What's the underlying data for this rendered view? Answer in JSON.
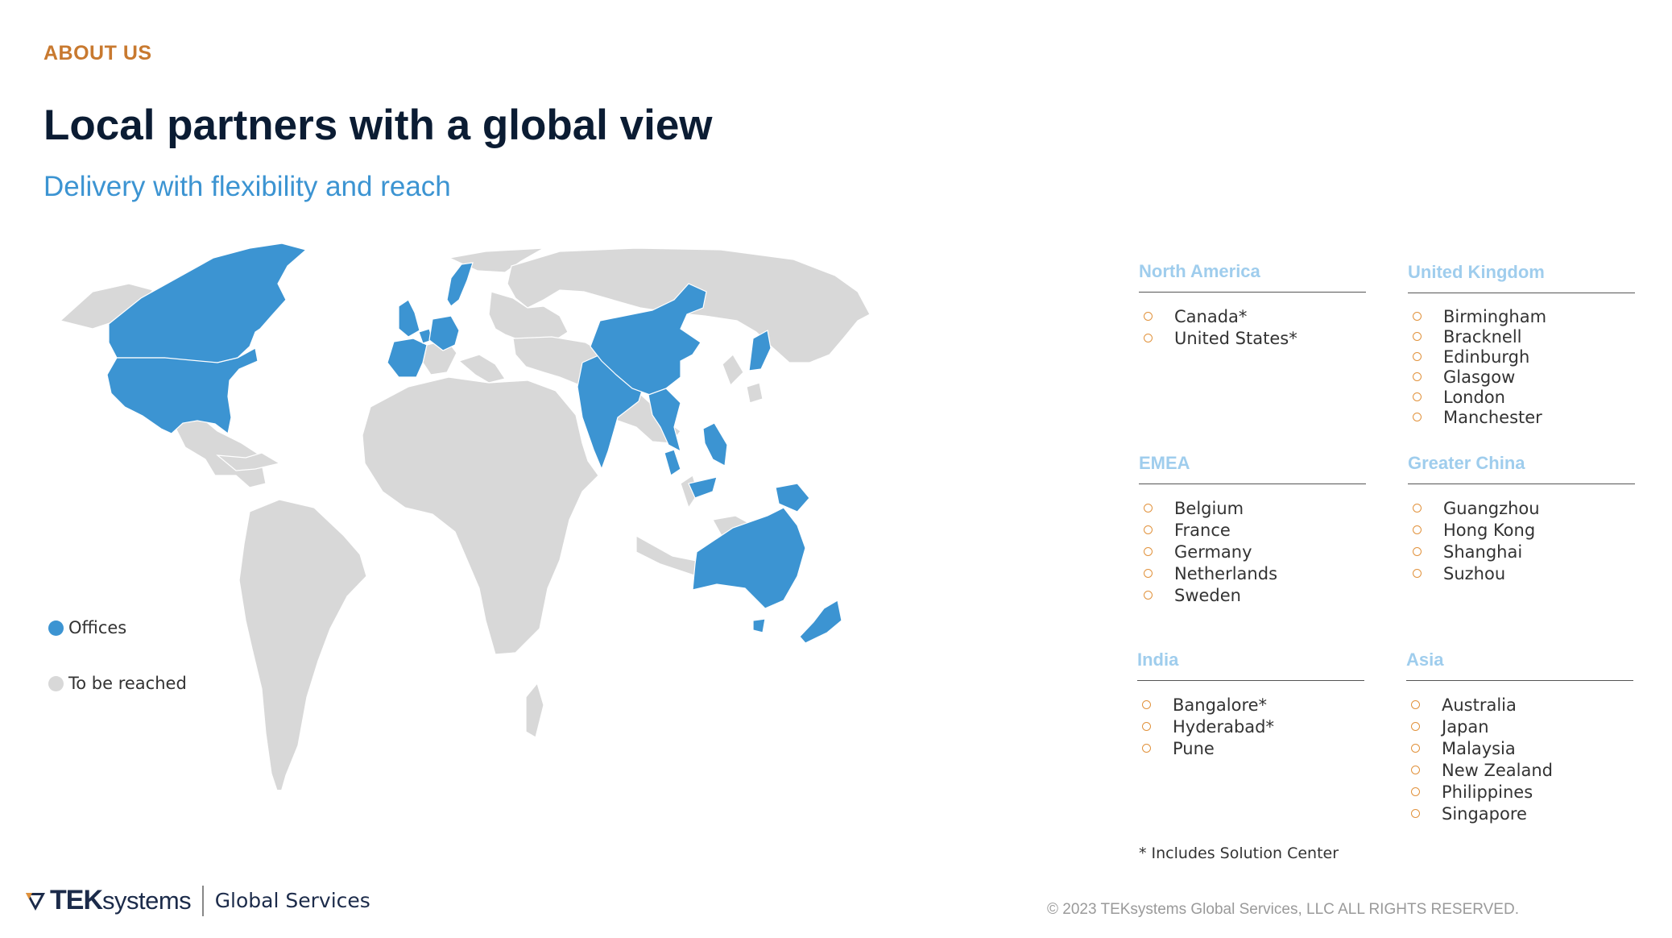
{
  "header": {
    "eyebrow": "ABOUT US",
    "title": "Local partners with a global view",
    "subtitle": "Delivery with flexibility and reach"
  },
  "colors": {
    "offices": "#3C94D2",
    "to_be_reached": "#D8D8D8",
    "accent": "#C8792F",
    "heading_light_blue": "#9FCDED",
    "bullet_orange": "#E1923C",
    "title_navy": "#0B1C33"
  },
  "legend": {
    "offices": "Offices",
    "to_be_reached": "To be reached"
  },
  "regions": {
    "north_america": {
      "heading": "North America",
      "items": [
        "Canada*",
        "United States*"
      ]
    },
    "united_kingdom": {
      "heading": "United Kingdom",
      "items": [
        "Birmingham",
        "Bracknell",
        "Edinburgh",
        "Glasgow",
        "London",
        "Manchester"
      ]
    },
    "emea": {
      "heading": "EMEA",
      "items": [
        "Belgium",
        "France",
        "Germany",
        "Netherlands",
        "Sweden"
      ]
    },
    "greater_china": {
      "heading": "Greater China",
      "items": [
        "Guangzhou",
        "Hong Kong",
        "Shanghai",
        "Suzhou"
      ]
    },
    "india": {
      "heading": "India",
      "items": [
        "Bangalore*",
        "Hyderabad*",
        "Pune"
      ]
    },
    "asia": {
      "heading": "Asia",
      "items": [
        "Australia",
        "Japan",
        "Malaysia",
        "New Zealand",
        "Philippines",
        "Singapore"
      ]
    }
  },
  "footnote": "* Includes Solution Center",
  "footer": {
    "logo_tek": "TEK",
    "logo_systems": "systems",
    "logo_sub": "Global Services",
    "copyright": "© 2023 TEKsystems Global Services, LLC ALL RIGHTS RESERVED."
  }
}
